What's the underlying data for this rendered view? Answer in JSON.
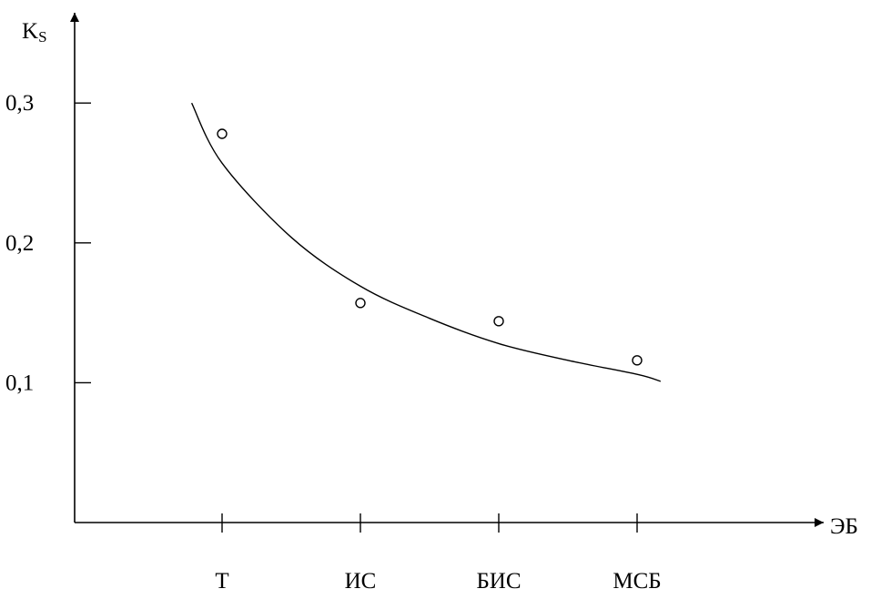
{
  "chart_data": {
    "type": "scatter",
    "xlabel": "ЭБ",
    "ylabel": "Ks",
    "ylabel_parts": {
      "main": "K",
      "sub": "S"
    },
    "categories": [
      "Т",
      "ИС",
      "БИС",
      "МСБ"
    ],
    "y_ticks": [
      "0,3",
      "0,2",
      "0,1"
    ],
    "y_tick_values": [
      0.3,
      0.2,
      0.1
    ],
    "series": [
      {
        "kind": "points",
        "values": [
          0.278,
          0.157,
          0.144,
          0.116
        ]
      }
    ],
    "trend_curve": {
      "x": [
        -0.22,
        0.0,
        0.5,
        1.0,
        1.5,
        2.0,
        2.5,
        3.0,
        3.17
      ],
      "y": [
        0.3,
        0.257,
        0.204,
        0.169,
        0.146,
        0.128,
        0.116,
        0.106,
        0.101
      ]
    },
    "ylim": [
      0,
      0.36
    ],
    "grid": false,
    "legend": "none"
  }
}
